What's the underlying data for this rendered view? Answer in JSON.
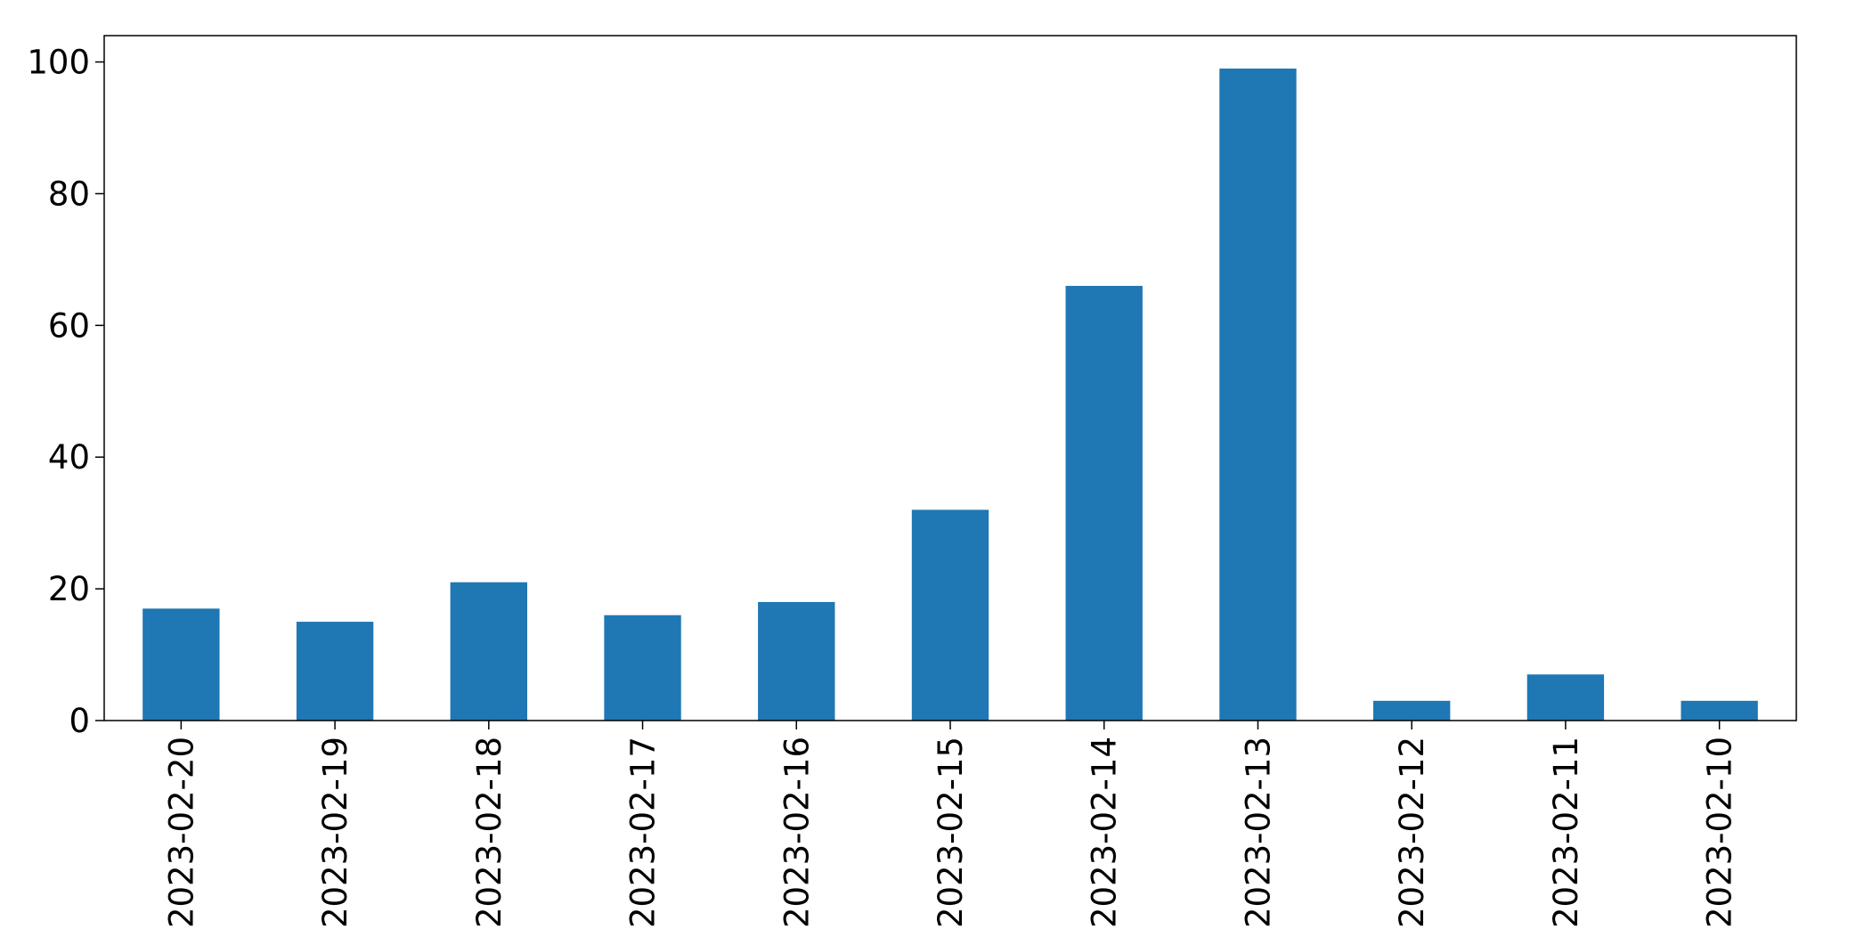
{
  "chart_data": {
    "type": "bar",
    "categories": [
      "2023-02-20",
      "2023-02-19",
      "2023-02-18",
      "2023-02-17",
      "2023-02-16",
      "2023-02-15",
      "2023-02-14",
      "2023-02-13",
      "2023-02-12",
      "2023-02-11",
      "2023-02-10"
    ],
    "values": [
      17,
      15,
      21,
      16,
      18,
      32,
      66,
      99,
      3,
      7,
      3
    ],
    "title": "",
    "xlabel": "",
    "ylabel": "",
    "ylim": [
      0,
      104
    ],
    "yticks": [
      "0",
      "20",
      "40",
      "60",
      "80",
      "100"
    ],
    "grid": false,
    "legend": false,
    "colors": {
      "bar": "#1f77b4",
      "axis": "#000000"
    }
  }
}
